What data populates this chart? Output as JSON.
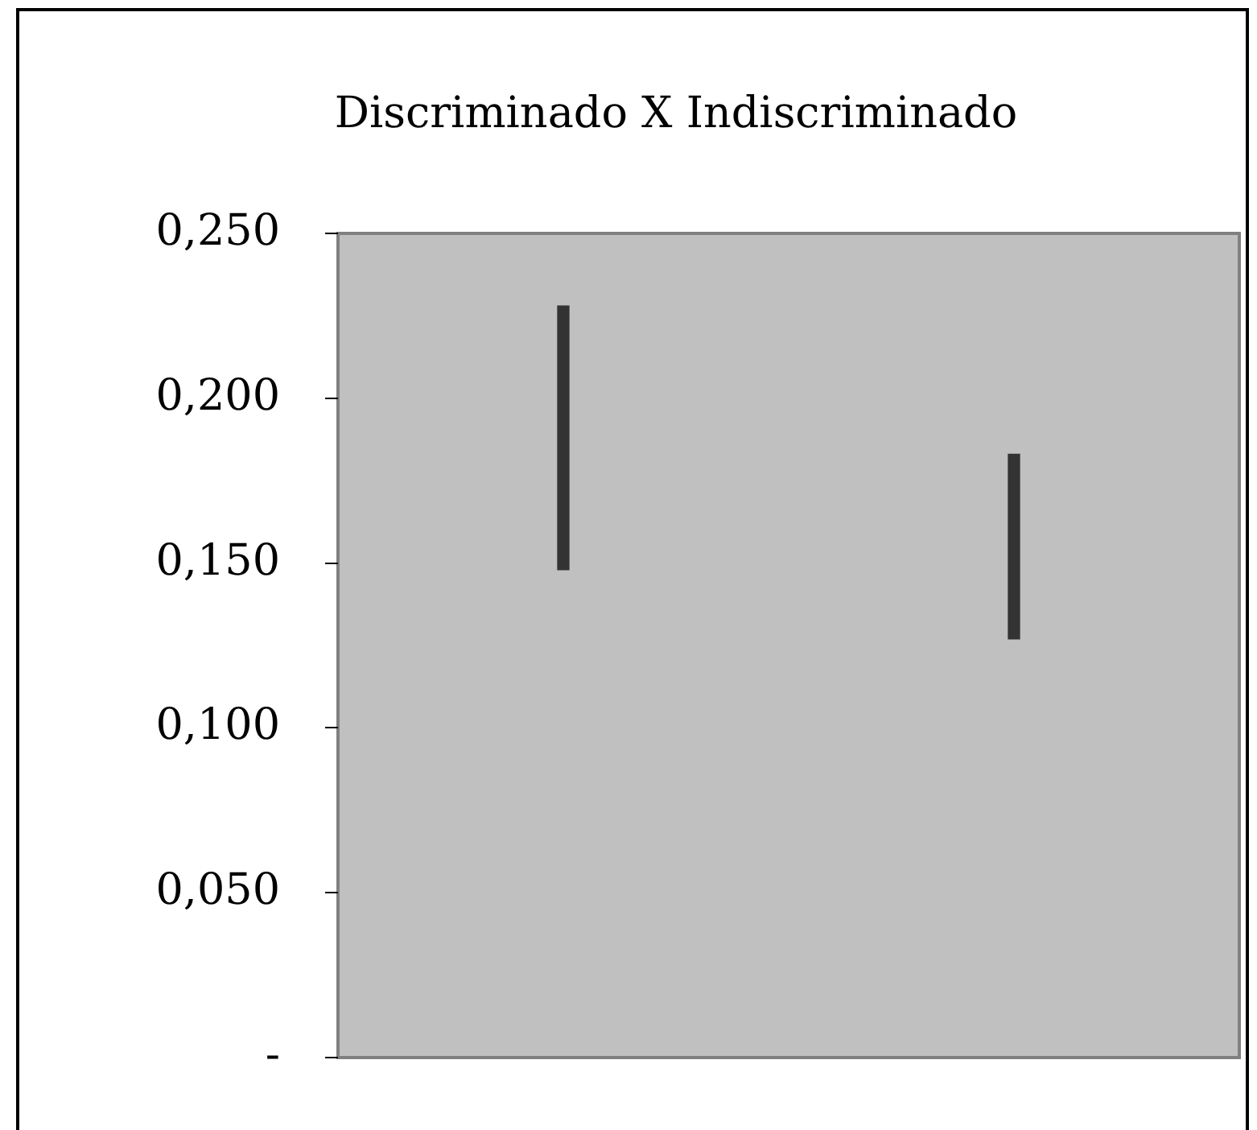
{
  "chart_data": {
    "type": "bar",
    "title": "Discriminado X Indiscriminado",
    "categories": [
      null,
      null
    ],
    "series": [
      {
        "color": "#333333",
        "values": [
          0.08,
          0.056
        ],
        "base": [
          0.148,
          0.127
        ]
      }
    ],
    "ylim": [
      0,
      0.25
    ],
    "yticks": [
      {
        "value": 0,
        "label": "-"
      },
      {
        "value": 0.05,
        "label": "0,050"
      },
      {
        "value": 0.1,
        "label": "0,100"
      },
      {
        "value": 0.15,
        "label": "0,150"
      },
      {
        "value": 0.2,
        "label": "0,200"
      },
      {
        "value": 0.25,
        "label": "0,250"
      }
    ],
    "grid": false,
    "legend": false
  }
}
